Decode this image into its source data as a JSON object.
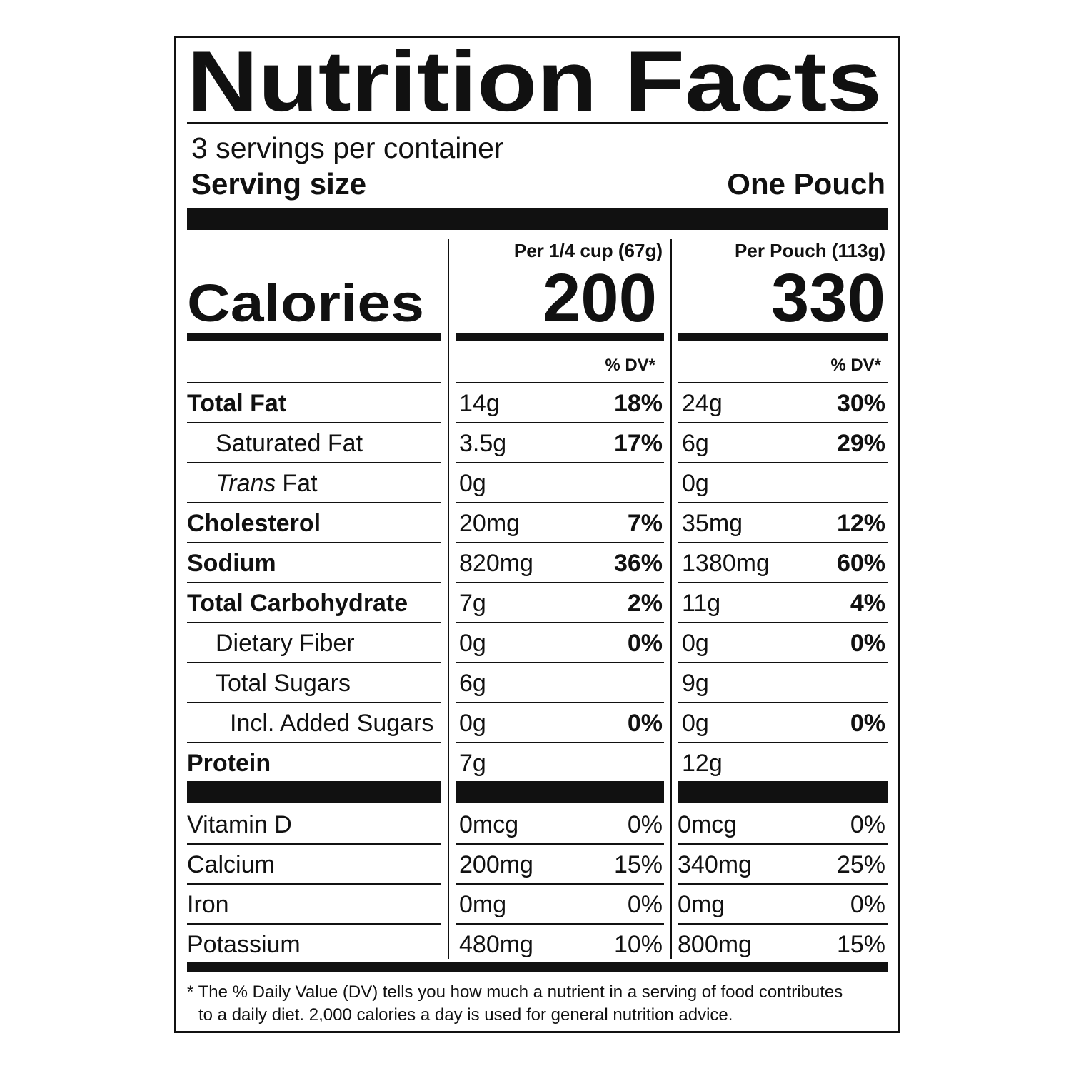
{
  "title": "Nutrition Facts",
  "servings": "3 servings per container",
  "serving_size": {
    "label": "Serving size",
    "value": "One Pouch"
  },
  "calories_label": "Calories",
  "columns": [
    {
      "header": "Per 1/4 cup (67g)",
      "calories": 200,
      "dv_header": "% DV*"
    },
    {
      "header": "Per Pouch (113g)",
      "calories": 330,
      "dv_header": "% DV*"
    }
  ],
  "nutrients": [
    {
      "name": "Total Fat",
      "values": [
        {
          "amount": "14g",
          "dv": "18%"
        },
        {
          "amount": "24g",
          "dv": "30%"
        }
      ]
    },
    {
      "name": "Saturated Fat",
      "values": [
        {
          "amount": "3.5g",
          "dv": "17%"
        },
        {
          "amount": "6g",
          "dv": "29%"
        }
      ]
    },
    {
      "name_italic": "Trans",
      "name": "Fat",
      "values": [
        {
          "amount": "0g"
        },
        {
          "amount": "0g"
        }
      ]
    },
    {
      "name": "Cholesterol",
      "values": [
        {
          "amount": "20mg",
          "dv": "7%"
        },
        {
          "amount": "35mg",
          "dv": "12%"
        }
      ]
    },
    {
      "name": "Sodium",
      "values": [
        {
          "amount": "820mg",
          "dv": "36%"
        },
        {
          "amount": "1380mg",
          "dv": "60%"
        }
      ]
    },
    {
      "name": "Total Carbohydrate",
      "values": [
        {
          "amount": "7g",
          "dv": "2%"
        },
        {
          "amount": "11g",
          "dv": "4%"
        }
      ]
    },
    {
      "name": "Dietary Fiber",
      "values": [
        {
          "amount": "0g",
          "dv": "0%"
        },
        {
          "amount": "0g",
          "dv": "0%"
        }
      ]
    },
    {
      "name": "Total Sugars",
      "values": [
        {
          "amount": "6g"
        },
        {
          "amount": "9g"
        }
      ]
    },
    {
      "name": "Incl. Added Sugars",
      "values": [
        {
          "amount": "0g",
          "dv": "0%"
        },
        {
          "amount": "0g",
          "dv": "0%"
        }
      ]
    },
    {
      "name": "Protein",
      "values": [
        {
          "amount": "7g"
        },
        {
          "amount": "12g"
        }
      ]
    }
  ],
  "vitamins_minerals": [
    {
      "name": "Vitamin D",
      "values": [
        {
          "amount": "0mcg",
          "dv": "0%"
        },
        {
          "amount": "0mcg",
          "dv": "0%"
        }
      ]
    },
    {
      "name": "Calcium",
      "values": [
        {
          "amount": "200mg",
          "dv": "15%"
        },
        {
          "amount": "340mg",
          "dv": "25%"
        }
      ]
    },
    {
      "name": "Iron",
      "values": [
        {
          "amount": "0mg",
          "dv": "0%"
        },
        {
          "amount": "0mg",
          "dv": "0%"
        }
      ]
    },
    {
      "name": "Potassium",
      "values": [
        {
          "amount": "480mg",
          "dv": "10%"
        },
        {
          "amount": "800mg",
          "dv": "15%"
        }
      ]
    }
  ],
  "footnote": [
    "* The % Daily Value (DV) tells you how much a nutrient in a serving of food contributes",
    "to a daily diet. 2,000 calories a day is used for general nutrition advice."
  ]
}
